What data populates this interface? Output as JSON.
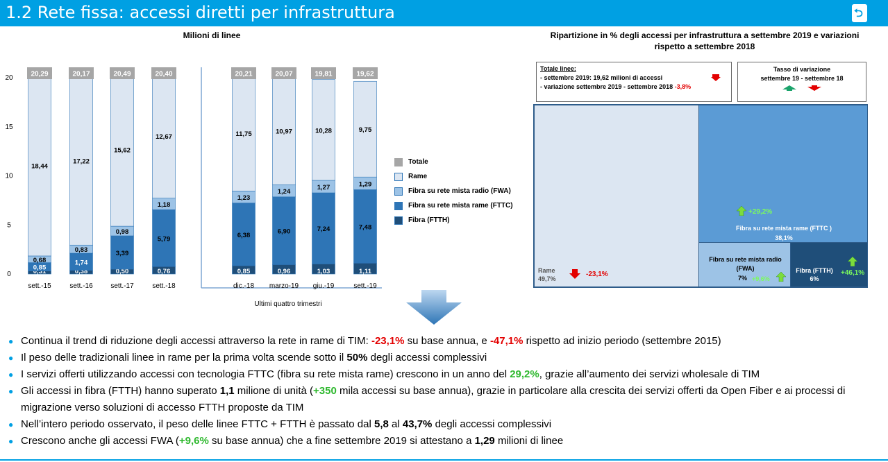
{
  "header": {
    "title": "1.2 Rete fissa: accessi diretti per infrastruttura",
    "back_icon": "return-arrow-icon"
  },
  "colors": {
    "header": "#00a0e3",
    "totale": "#a6a6a6",
    "rame": "#dce6f2",
    "fwa": "#9dc3e6",
    "fttc": "#2e75b6",
    "ftth": "#1f4e79",
    "red": "#e30000",
    "green": "#2eb82e"
  },
  "chart_data": [
    {
      "type": "bar",
      "stacked": true,
      "title": "Milioni di linee",
      "categories": [
        "sett.-15",
        "sett.-16",
        "sett.-17",
        "sett.-18",
        "dic.-18",
        "marzo-19",
        "giu.-19",
        "sett.-19"
      ],
      "group_label": "Ultimi quattro trimestri",
      "yticks": [
        "0",
        "5",
        "10",
        "15",
        "20"
      ],
      "ylim": [
        0,
        20.29
      ],
      "totals": [
        "20,29",
        "20,17",
        "20,49",
        "20,40",
        "20,21",
        "20,07",
        "19,81",
        "19,62"
      ],
      "series": [
        {
          "name": "Fibra (FTTH)",
          "values": [
            0.31,
            0.38,
            0.5,
            0.76,
            0.85,
            0.96,
            1.03,
            1.11
          ],
          "labels": [
            "0,31",
            "0,38",
            "0,50",
            "0,76",
            "0,85",
            "0,96",
            "1,03",
            "1,11"
          ]
        },
        {
          "name": "Fibra su rete mista rame (FTTC)",
          "values": [
            0.85,
            1.74,
            3.39,
            5.79,
            6.38,
            6.9,
            7.24,
            7.48
          ],
          "labels": [
            "0,85",
            "1,74",
            "3,39",
            "5,79",
            "6,38",
            "6,90",
            "7,24",
            "7,48"
          ]
        },
        {
          "name": "Fibra su rete mista radio (FWA)",
          "values": [
            0.68,
            0.83,
            0.98,
            1.18,
            1.23,
            1.24,
            1.27,
            1.29
          ],
          "labels": [
            "0,68",
            "0,83",
            "0,98",
            "1,18",
            "1,23",
            "1,24",
            "1,27",
            "1,29"
          ]
        },
        {
          "name": "Rame",
          "values": [
            18.44,
            17.22,
            15.62,
            12.67,
            11.75,
            10.97,
            10.28,
            9.75
          ],
          "labels": [
            "18,44",
            "17,22",
            "15,62",
            "12,67",
            "11,75",
            "10,97",
            "10,28",
            "9,75"
          ]
        }
      ],
      "legend": [
        "Totale",
        "Rame",
        "Fibra su rete mista radio (FWA)",
        "Fibra su rete mista rame (FTTC)",
        "Fibra (FTTH)"
      ],
      "legend_placement": "right"
    },
    {
      "type": "treemap",
      "title": "Ripartizione in % degli accessi per infrastruttura a settembre 2019 e variazioni rispetto a settembre 2018",
      "cells": [
        {
          "name": "Rame",
          "share": 49.7,
          "share_label": "49,7%",
          "change": "-23,1%",
          "direction": "down"
        },
        {
          "name": "Fibra su rete mista rame (FTTC )",
          "share": 38.1,
          "share_label": "38,1%",
          "change": "+29,2%",
          "direction": "up"
        },
        {
          "name": "Fibra su rete mista radio (FWA)",
          "share": 7,
          "share_label": "7%",
          "change": "+9,6%",
          "direction": "up"
        },
        {
          "name": "Fibra (FTTH)",
          "share": 6,
          "share_label": "6%",
          "change": "+46,1%",
          "direction": "up"
        }
      ]
    }
  ],
  "treemap_info": {
    "totale_title": "Totale linee:",
    "line1": "- settembre 2019: 19,62 milioni di accessi",
    "line2": "- variazione  settembre 2019 - settembre 2018",
    "variation": "-3,8%",
    "tasso_title": "Tasso  di variazione",
    "tasso_sub": "settembre 19 - settembre 18"
  },
  "bullets": [
    [
      {
        "t": "Continua il trend di riduzione degli accessi attraverso la rete in rame di TIM: "
      },
      {
        "t": "-23,1%",
        "c": "bred"
      },
      {
        "t": " su base annua, e "
      },
      {
        "t": "-47,1%",
        "c": "bred"
      },
      {
        "t": " rispetto ad inizio periodo (settembre 2015)"
      }
    ],
    [
      {
        "t": "Il peso delle tradizionali linee in rame per la prima volta scende sotto il "
      },
      {
        "t": "50%",
        "c": "b"
      },
      {
        "t": " degli accessi complessivi"
      }
    ],
    [
      {
        "t": "I servizi offerti utilizzando accessi con tecnologia FTTC (fibra su rete mista rame) crescono in un anno del "
      },
      {
        "t": "29,2%",
        "c": "bgreen"
      },
      {
        "t": ", grazie all’aumento dei servizi wholesale di TIM"
      }
    ],
    [
      {
        "t": "Gli accessi in fibra (FTTH) hanno superato "
      },
      {
        "t": "1,1",
        "c": "b"
      },
      {
        "t": " milione di unità ("
      },
      {
        "t": "+350",
        "c": "bgreen"
      },
      {
        "t": " mila accessi su base annua), grazie in particolare alla crescita dei servizi offerti da Open Fiber e ai processi di migrazione verso soluzioni di accesso FTTH proposte da TIM"
      }
    ],
    [
      {
        "t": "Nell’intero periodo osservato, il peso delle linee FTTC + FTTH è passato dal "
      },
      {
        "t": "5,8",
        "c": "b"
      },
      {
        "t": " al "
      },
      {
        "t": "43,7%",
        "c": "b"
      },
      {
        "t": " degli accessi complessivi"
      }
    ],
    [
      {
        "t": "Crescono anche gli accessi FWA ("
      },
      {
        "t": "+9,6%",
        "c": "bgreen"
      },
      {
        "t": " su base annua) che a fine settembre 2019 si attestano a "
      },
      {
        "t": "1,29",
        "c": "b"
      },
      {
        "t": " milioni di linee"
      }
    ]
  ]
}
